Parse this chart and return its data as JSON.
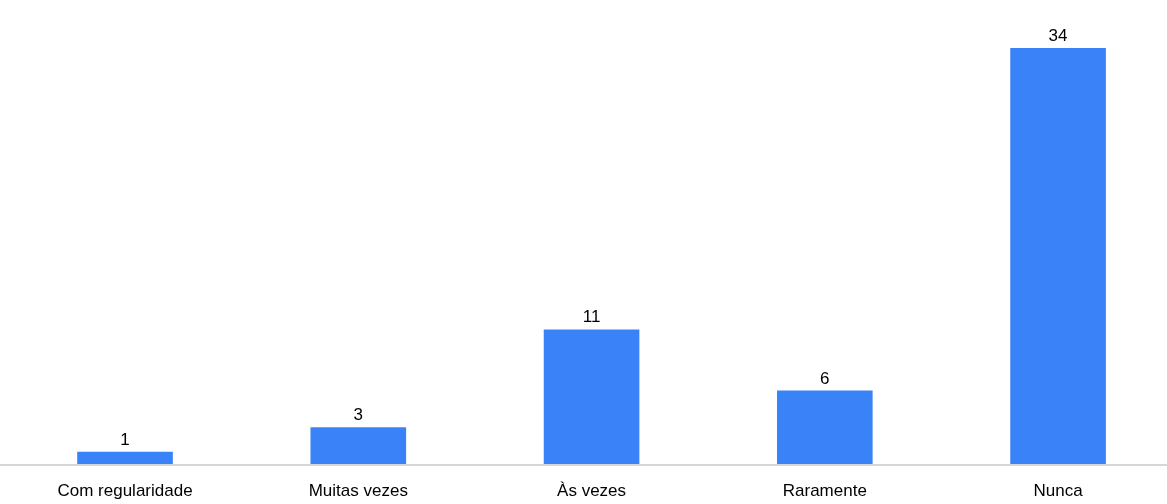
{
  "chart_data": {
    "type": "bar",
    "categories": [
      "Com regularidade",
      "Muitas vezes",
      "Às vezes",
      "Raramente",
      "Nunca"
    ],
    "values": [
      1,
      3,
      11,
      6,
      34
    ],
    "color": "#3a82f7",
    "data_labels": true,
    "tick_labels": "x"
  }
}
